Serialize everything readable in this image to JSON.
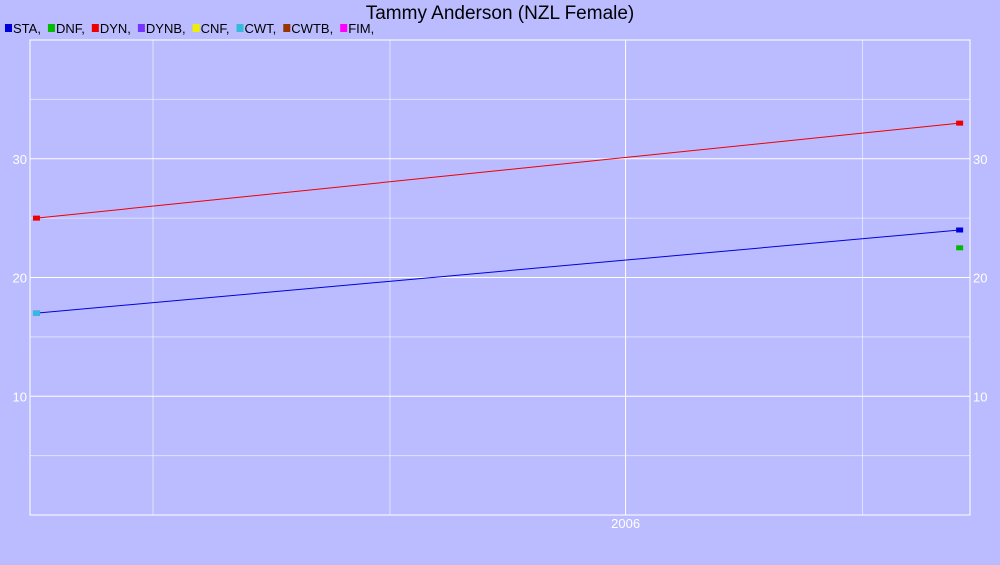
{
  "chart_data": {
    "type": "line",
    "title": "Tammy Anderson (NZL Female)",
    "xlabel": "",
    "ylabel": "",
    "x_ticks": [
      "2006"
    ],
    "y_ticks": [
      10,
      20,
      30
    ],
    "ylim": [
      0,
      40
    ],
    "grid": true,
    "legend_position": "top-left",
    "legend": [
      {
        "label": "STA,",
        "color": "#0000dd"
      },
      {
        "label": "DNF,",
        "color": "#00bb00"
      },
      {
        "label": "DYN,",
        "color": "#ee0000"
      },
      {
        "label": "DYNB,",
        "color": "#7733ff"
      },
      {
        "label": "CNF,",
        "color": "#eeee00"
      },
      {
        "label": "CWT,",
        "color": "#33bbdd"
      },
      {
        "label": "CWTB,",
        "color": "#993300"
      },
      {
        "label": "FIM,",
        "color": "#ff00ff"
      }
    ],
    "series": [
      {
        "name": "DYN",
        "color": "#ee0000",
        "line": true,
        "points": [
          {
            "x": "2005-01-01",
            "y": 25
          },
          {
            "x": "2006-12-15",
            "y": 33
          }
        ]
      },
      {
        "name": "STA",
        "color": "#0000dd",
        "line": true,
        "points": [
          {
            "x": "2005-01-01",
            "y": 17
          },
          {
            "x": "2006-12-15",
            "y": 24
          }
        ]
      },
      {
        "name": "DNF",
        "color": "#00bb00",
        "line": false,
        "points": [
          {
            "x": "2006-12-15",
            "y": 22.5
          }
        ]
      },
      {
        "name": "CWT",
        "color": "#33bbdd",
        "line": false,
        "points": [
          {
            "x": "2005-01-01",
            "y": 17
          }
        ]
      }
    ]
  }
}
